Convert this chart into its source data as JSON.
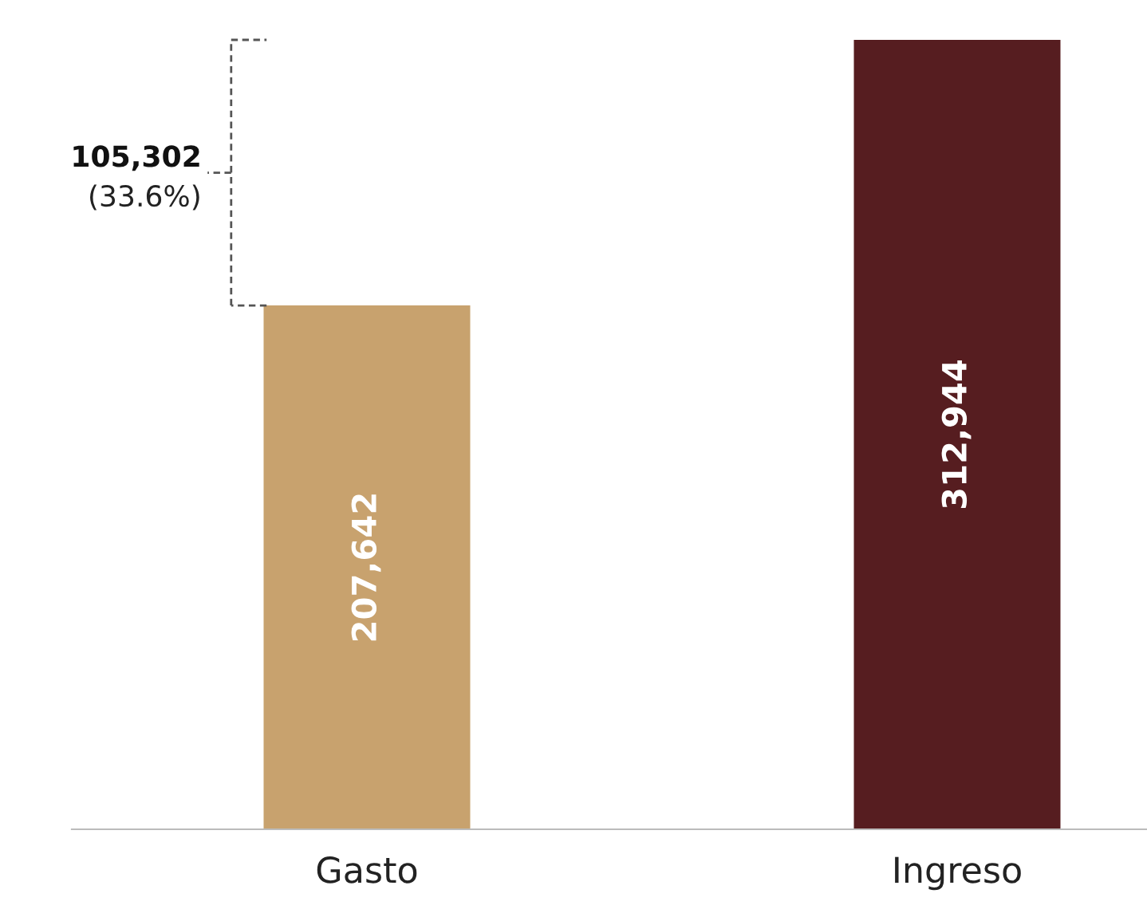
{
  "chart_data": {
    "type": "bar",
    "categories": [
      "Gasto",
      "Ingreso"
    ],
    "values": [
      207642,
      312944
    ],
    "colors": [
      "#c8a26e",
      "#561d20"
    ],
    "value_labels": [
      "207,642",
      "312,944"
    ],
    "annotations": [
      "105,302",
      "(33.6%)"
    ],
    "grid": false,
    "legend": false
  }
}
